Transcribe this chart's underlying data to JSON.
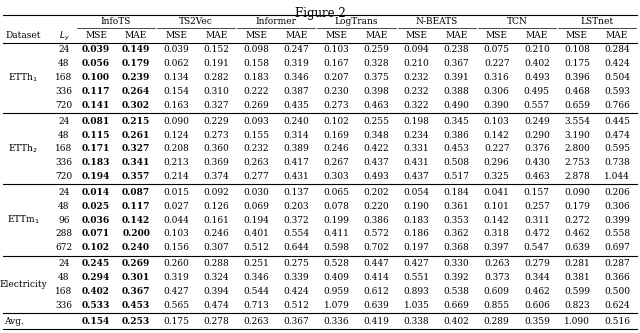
{
  "title": "Figure 2",
  "methods": [
    "InfoTS",
    "TS2Vec",
    "Informer",
    "LogTrans",
    "N-BEATS",
    "TCN",
    "LSTnet"
  ],
  "datasets": [
    {
      "name": "ETTh1",
      "latex_name": "ETTh$_1$",
      "rows": [
        {
          "Ly": "24",
          "data": [
            [
              0.039,
              0.149
            ],
            [
              0.039,
              0.152
            ],
            [
              0.098,
              0.247
            ],
            [
              0.103,
              0.259
            ],
            [
              0.094,
              0.238
            ],
            [
              0.075,
              0.21
            ],
            [
              0.108,
              0.284
            ]
          ]
        },
        {
          "Ly": "48",
          "data": [
            [
              0.056,
              0.179
            ],
            [
              0.062,
              0.191
            ],
            [
              0.158,
              0.319
            ],
            [
              0.167,
              0.328
            ],
            [
              0.21,
              0.367
            ],
            [
              0.227,
              0.402
            ],
            [
              0.175,
              0.424
            ]
          ]
        },
        {
          "Ly": "168",
          "data": [
            [
              0.1,
              0.239
            ],
            [
              0.134,
              0.282
            ],
            [
              0.183,
              0.346
            ],
            [
              0.207,
              0.375
            ],
            [
              0.232,
              0.391
            ],
            [
              0.316,
              0.493
            ],
            [
              0.396,
              0.504
            ]
          ]
        },
        {
          "Ly": "336",
          "data": [
            [
              0.117,
              0.264
            ],
            [
              0.154,
              0.31
            ],
            [
              0.222,
              0.387
            ],
            [
              0.23,
              0.398
            ],
            [
              0.232,
              0.388
            ],
            [
              0.306,
              0.495
            ],
            [
              0.468,
              0.593
            ]
          ]
        },
        {
          "Ly": "720",
          "data": [
            [
              0.141,
              0.302
            ],
            [
              0.163,
              0.327
            ],
            [
              0.269,
              0.435
            ],
            [
              0.273,
              0.463
            ],
            [
              0.322,
              0.49
            ],
            [
              0.39,
              0.557
            ],
            [
              0.659,
              0.766
            ]
          ]
        }
      ]
    },
    {
      "name": "ETTh2",
      "latex_name": "ETTh$_2$",
      "rows": [
        {
          "Ly": "24",
          "data": [
            [
              0.081,
              0.215
            ],
            [
              0.09,
              0.229
            ],
            [
              0.093,
              0.24
            ],
            [
              0.102,
              0.255
            ],
            [
              0.198,
              0.345
            ],
            [
              0.103,
              0.249
            ],
            [
              3.554,
              0.445
            ]
          ]
        },
        {
          "Ly": "48",
          "data": [
            [
              0.115,
              0.261
            ],
            [
              0.124,
              0.273
            ],
            [
              0.155,
              0.314
            ],
            [
              0.169,
              0.348
            ],
            [
              0.234,
              0.386
            ],
            [
              0.142,
              0.29
            ],
            [
              3.19,
              0.474
            ]
          ]
        },
        {
          "Ly": "168",
          "data": [
            [
              0.171,
              0.327
            ],
            [
              0.208,
              0.36
            ],
            [
              0.232,
              0.389
            ],
            [
              0.246,
              0.422
            ],
            [
              0.331,
              0.453
            ],
            [
              0.227,
              0.376
            ],
            [
              2.8,
              0.595
            ]
          ]
        },
        {
          "Ly": "336",
          "data": [
            [
              0.183,
              0.341
            ],
            [
              0.213,
              0.369
            ],
            [
              0.263,
              0.417
            ],
            [
              0.267,
              0.437
            ],
            [
              0.431,
              0.508
            ],
            [
              0.296,
              0.43
            ],
            [
              2.753,
              0.738
            ]
          ]
        },
        {
          "Ly": "720",
          "data": [
            [
              0.194,
              0.357
            ],
            [
              0.214,
              0.374
            ],
            [
              0.277,
              0.431
            ],
            [
              0.303,
              0.493
            ],
            [
              0.437,
              0.517
            ],
            [
              0.325,
              0.463
            ],
            [
              2.878,
              1.044
            ]
          ]
        }
      ]
    },
    {
      "name": "ETTm1",
      "latex_name": "ETTm$_1$",
      "rows": [
        {
          "Ly": "24",
          "data": [
            [
              0.014,
              0.087
            ],
            [
              0.015,
              0.092
            ],
            [
              0.03,
              0.137
            ],
            [
              0.065,
              0.202
            ],
            [
              0.054,
              0.184
            ],
            [
              0.041,
              0.157
            ],
            [
              0.09,
              0.206
            ]
          ]
        },
        {
          "Ly": "48",
          "data": [
            [
              0.025,
              0.117
            ],
            [
              0.027,
              0.126
            ],
            [
              0.069,
              0.203
            ],
            [
              0.078,
              0.22
            ],
            [
              0.19,
              0.361
            ],
            [
              0.101,
              0.257
            ],
            [
              0.179,
              0.306
            ]
          ]
        },
        {
          "Ly": "96",
          "data": [
            [
              0.036,
              0.142
            ],
            [
              0.044,
              0.161
            ],
            [
              0.194,
              0.372
            ],
            [
              0.199,
              0.386
            ],
            [
              0.183,
              0.353
            ],
            [
              0.142,
              0.311
            ],
            [
              0.272,
              0.399
            ]
          ]
        },
        {
          "Ly": "288",
          "data": [
            [
              0.071,
              0.2
            ],
            [
              0.103,
              0.246
            ],
            [
              0.401,
              0.554
            ],
            [
              0.411,
              0.572
            ],
            [
              0.186,
              0.362
            ],
            [
              0.318,
              0.472
            ],
            [
              0.462,
              0.558
            ]
          ]
        },
        {
          "Ly": "672",
          "data": [
            [
              0.102,
              0.24
            ],
            [
              0.156,
              0.307
            ],
            [
              0.512,
              0.644
            ],
            [
              0.598,
              0.702
            ],
            [
              0.197,
              0.368
            ],
            [
              0.397,
              0.547
            ],
            [
              0.639,
              0.697
            ]
          ]
        }
      ]
    },
    {
      "name": "Electricity",
      "latex_name": "Electricity",
      "rows": [
        {
          "Ly": "24",
          "data": [
            [
              0.245,
              0.269
            ],
            [
              0.26,
              0.288
            ],
            [
              0.251,
              0.275
            ],
            [
              0.528,
              0.447
            ],
            [
              0.427,
              0.33
            ],
            [
              0.263,
              0.279
            ],
            [
              0.281,
              0.287
            ]
          ]
        },
        {
          "Ly": "48",
          "data": [
            [
              0.294,
              0.301
            ],
            [
              0.319,
              0.324
            ],
            [
              0.346,
              0.339
            ],
            [
              0.409,
              0.414
            ],
            [
              0.551,
              0.392
            ],
            [
              0.373,
              0.344
            ],
            [
              0.381,
              0.366
            ]
          ]
        },
        {
          "Ly": "168",
          "data": [
            [
              0.402,
              0.367
            ],
            [
              0.427,
              0.394
            ],
            [
              0.544,
              0.424
            ],
            [
              0.959,
              0.612
            ],
            [
              0.893,
              0.538
            ],
            [
              0.609,
              0.462
            ],
            [
              0.599,
              0.5
            ]
          ]
        },
        {
          "Ly": "336",
          "data": [
            [
              0.533,
              0.453
            ],
            [
              0.565,
              0.474
            ],
            [
              0.713,
              0.512
            ],
            [
              1.079,
              0.639
            ],
            [
              1.035,
              0.669
            ],
            [
              0.855,
              0.606
            ],
            [
              0.823,
              0.624
            ]
          ]
        }
      ]
    }
  ],
  "avg_row": [
    0.154,
    0.253,
    0.175,
    0.278,
    0.263,
    0.367,
    0.336,
    0.419,
    0.338,
    0.402,
    0.289,
    0.359,
    1.09,
    0.516
  ],
  "bg_color": "#ffffff",
  "text_color": "#000000",
  "font_size": 6.5,
  "title_fontsize": 8.5
}
